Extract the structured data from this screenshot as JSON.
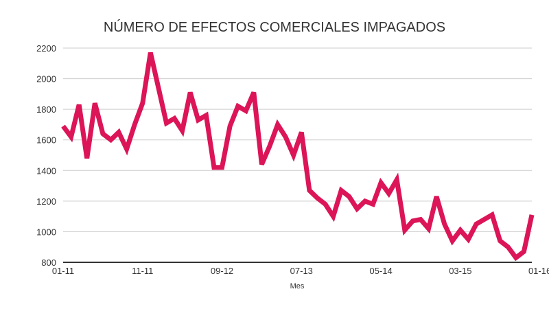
{
  "chart_data": {
    "type": "line",
    "title": "NÚMERO DE EFECTOS COMERCIALES IMPAGADOS",
    "xlabel": "Mes",
    "ylabel": "",
    "ylim": [
      800,
      2200
    ],
    "yticks": [
      "800",
      "1000",
      "1200",
      "1400",
      "1600",
      "1800",
      "2000",
      "2200"
    ],
    "xticks": [
      "01-11",
      "11-11",
      "09-12",
      "07-13",
      "05-14",
      "03-15",
      "01-16"
    ],
    "grid": true,
    "legend": "none",
    "color": "#dc1558",
    "series": [
      {
        "values": [
          1690,
          1620,
          1830,
          1480,
          1840,
          1640,
          1600,
          1650,
          1540,
          1700,
          1840,
          2170,
          1940,
          1710,
          1740,
          1660,
          1910,
          1730,
          1760,
          1420,
          1420,
          1690,
          1820,
          1790,
          1910,
          1440,
          1560,
          1700,
          1620,
          1500,
          1650,
          1270,
          1220,
          1180,
          1100,
          1270,
          1230,
          1150,
          1200,
          1180,
          1320,
          1250,
          1340,
          1010,
          1070,
          1080,
          1020,
          1230,
          1050,
          940,
          1010,
          950,
          1050,
          1080,
          1110,
          940,
          900,
          830,
          870,
          1110
        ]
      }
    ]
  }
}
